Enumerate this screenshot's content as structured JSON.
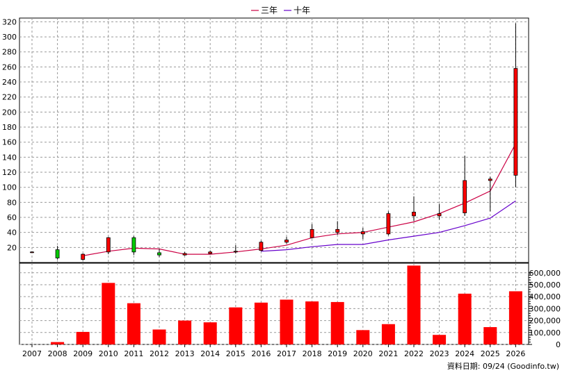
{
  "legend": [
    {
      "label": "三年",
      "color": "#cc0044"
    },
    {
      "label": "十年",
      "color": "#6600cc"
    }
  ],
  "footer_note": "資料日期: 09/24  (Goodinfo.tw)",
  "colors": {
    "up": "#ff0000",
    "down": "#00cc00",
    "volume": "#ff0000",
    "grid": "#999999"
  },
  "chart_data": [
    {
      "type": "candlestick",
      "title": "",
      "years": [
        "2007",
        "2008",
        "2009",
        "2010",
        "2011",
        "2012",
        "2013",
        "2014",
        "2015",
        "2016",
        "2017",
        "2018",
        "2019",
        "2020",
        "2021",
        "2022",
        "2023",
        "2024",
        "2025",
        "2026"
      ],
      "y_ticks": [
        20,
        40,
        60,
        80,
        100,
        120,
        140,
        160,
        180,
        200,
        220,
        240,
        260,
        280,
        300,
        320
      ],
      "ylim": [
        0,
        325
      ],
      "grid": true,
      "candles": [
        {
          "year": "2007",
          "open": 14,
          "close": 14,
          "high": 15,
          "low": 13
        },
        {
          "year": "2008",
          "open": 17,
          "close": 6,
          "high": 22,
          "low": 4
        },
        {
          "year": "2009",
          "open": 4,
          "close": 11,
          "high": 12,
          "low": 3
        },
        {
          "year": "2010",
          "open": 14,
          "close": 33,
          "high": 34,
          "low": 11
        },
        {
          "year": "2011",
          "open": 33,
          "close": 14,
          "high": 35,
          "low": 10
        },
        {
          "year": "2012",
          "open": 13,
          "close": 10,
          "high": 18,
          "low": 7
        },
        {
          "year": "2013",
          "open": 10,
          "close": 12,
          "high": 14,
          "low": 9
        },
        {
          "year": "2014",
          "open": 12,
          "close": 14,
          "high": 16,
          "low": 11
        },
        {
          "year": "2015",
          "open": 14,
          "close": 15,
          "high": 23,
          "low": 12
        },
        {
          "year": "2016",
          "open": 16,
          "close": 27,
          "high": 29,
          "low": 15
        },
        {
          "year": "2017",
          "open": 27,
          "close": 30,
          "high": 34,
          "low": 25
        },
        {
          "year": "2018",
          "open": 33,
          "close": 44,
          "high": 51,
          "low": 32
        },
        {
          "year": "2019",
          "open": 40,
          "close": 44,
          "high": 55,
          "low": 37
        },
        {
          "year": "2020",
          "open": 38,
          "close": 41,
          "high": 46,
          "low": 31
        },
        {
          "year": "2021",
          "open": 38,
          "close": 65,
          "high": 68,
          "low": 36
        },
        {
          "year": "2022",
          "open": 62,
          "close": 67,
          "high": 88,
          "low": 55
        },
        {
          "year": "2023",
          "open": 62,
          "close": 65,
          "high": 78,
          "low": 57
        },
        {
          "year": "2024",
          "open": 66,
          "close": 109,
          "high": 142,
          "low": 62
        },
        {
          "year": "2025",
          "open": 109,
          "close": 111,
          "high": 114,
          "low": 68
        },
        {
          "year": "2026",
          "open": 116,
          "close": 258,
          "high": 318,
          "low": 100
        }
      ],
      "series": [
        {
          "name": "三年",
          "color": "#cc0044",
          "x": [
            "2009",
            "2010",
            "2011",
            "2012",
            "2013",
            "2014",
            "2015",
            "2016",
            "2017",
            "2018",
            "2019",
            "2020",
            "2021",
            "2022",
            "2023",
            "2024",
            "2025",
            "2026"
          ],
          "values": [
            9,
            15,
            19,
            18,
            11,
            11,
            14,
            18,
            23,
            33,
            38,
            40,
            47,
            54,
            65,
            79,
            95,
            158
          ]
        },
        {
          "name": "十年",
          "color": "#6600cc",
          "x": [
            "2016",
            "2017",
            "2018",
            "2019",
            "2020",
            "2021",
            "2022",
            "2023",
            "2024",
            "2025",
            "2026"
          ],
          "values": [
            15,
            17,
            21,
            24,
            24,
            30,
            35,
            40,
            49,
            59,
            82
          ]
        }
      ]
    },
    {
      "type": "bar",
      "title": "",
      "categories": [
        "2007",
        "2008",
        "2009",
        "2010",
        "2011",
        "2012",
        "2013",
        "2014",
        "2015",
        "2016",
        "2017",
        "2018",
        "2019",
        "2020",
        "2021",
        "2022",
        "2023",
        "2024",
        "2025",
        "2026"
      ],
      "values": [
        0,
        20000,
        105000,
        515000,
        345000,
        125000,
        200000,
        185000,
        310000,
        350000,
        375000,
        360000,
        355000,
        120000,
        170000,
        660000,
        80000,
        425000,
        145000,
        445000
      ],
      "y_ticks": [
        0,
        100000,
        200000,
        300000,
        400000,
        500000,
        600000
      ],
      "y_tick_labels": [
        "0",
        "100,000",
        "200,000",
        "300,000",
        "400,000",
        "500,000",
        "600,000"
      ],
      "ylim": [
        0,
        680000
      ],
      "grid": true
    }
  ]
}
